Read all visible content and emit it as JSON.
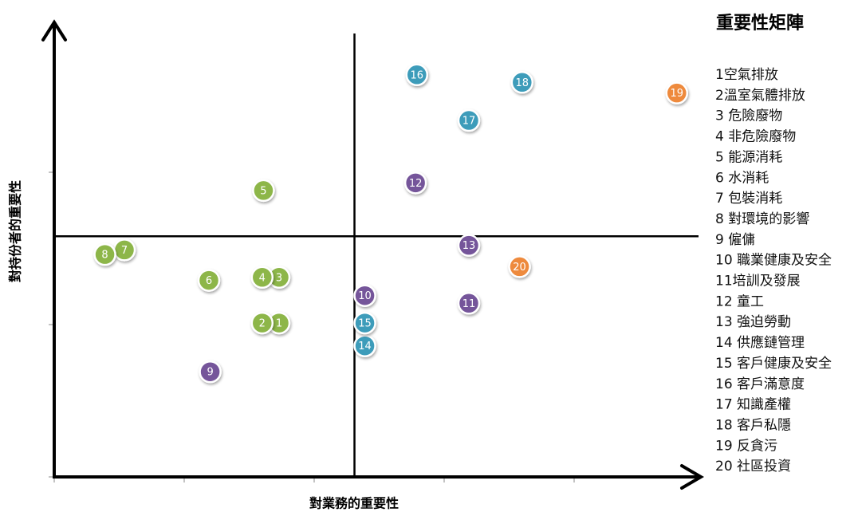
{
  "chart_data": {
    "type": "scatter",
    "title": "重要性矩陣",
    "x_label": "對業務的重要性",
    "y_label": "對持份者的重要性",
    "xlim": [
      0,
      5
    ],
    "ylim": [
      0,
      3
    ],
    "xticks": [
      0,
      1,
      2,
      3,
      4
    ],
    "yticks": [
      0,
      1,
      2
    ],
    "quadrant_x": 2.31,
    "quadrant_y": 1.58,
    "series": [
      {
        "color": "#8db64a",
        "labels": [
          "1",
          "2",
          "3",
          "4",
          "5",
          "6",
          "7",
          "8"
        ],
        "x": [
          1.73,
          1.6,
          1.73,
          1.6,
          1.61,
          1.19,
          0.54,
          0.39
        ],
        "y": [
          1.01,
          1.01,
          1.31,
          1.31,
          1.88,
          1.29,
          1.49,
          1.46
        ]
      },
      {
        "color": "#74559a",
        "labels": [
          "9",
          "10",
          "11",
          "12",
          "13"
        ],
        "x": [
          1.2,
          2.39,
          3.19,
          2.78,
          3.19
        ],
        "y": [
          0.69,
          1.19,
          1.14,
          1.93,
          1.52
        ]
      },
      {
        "color": "#3d9cba",
        "labels": [
          "14",
          "15",
          "16",
          "17",
          "18"
        ],
        "x": [
          2.39,
          2.39,
          2.79,
          3.19,
          3.6
        ],
        "y": [
          0.86,
          1.01,
          2.64,
          2.34,
          2.59
        ]
      },
      {
        "color": "#ee8a3c",
        "labels": [
          "19",
          "20"
        ],
        "x": [
          4.79,
          3.58
        ],
        "y": [
          2.52,
          1.38
        ]
      }
    ],
    "items": [
      "1空氣排放",
      "2溫室氣體排放",
      "3 危險廢物",
      "4 非危險廢物",
      "5 能源消耗",
      "6 水消耗",
      "7 包裝消耗",
      "8 對環境的影響",
      "9 僱傭",
      "10 職業健康及安全",
      "11培訓及發展",
      "12 童工",
      "13 強迫勞動",
      "14 供應鏈管理",
      "15 客戶健康及安全",
      "16 客戶滿意度",
      "17 知識產權",
      "18 客戶私隱",
      "19 反貪污",
      "20 社區投資"
    ]
  }
}
